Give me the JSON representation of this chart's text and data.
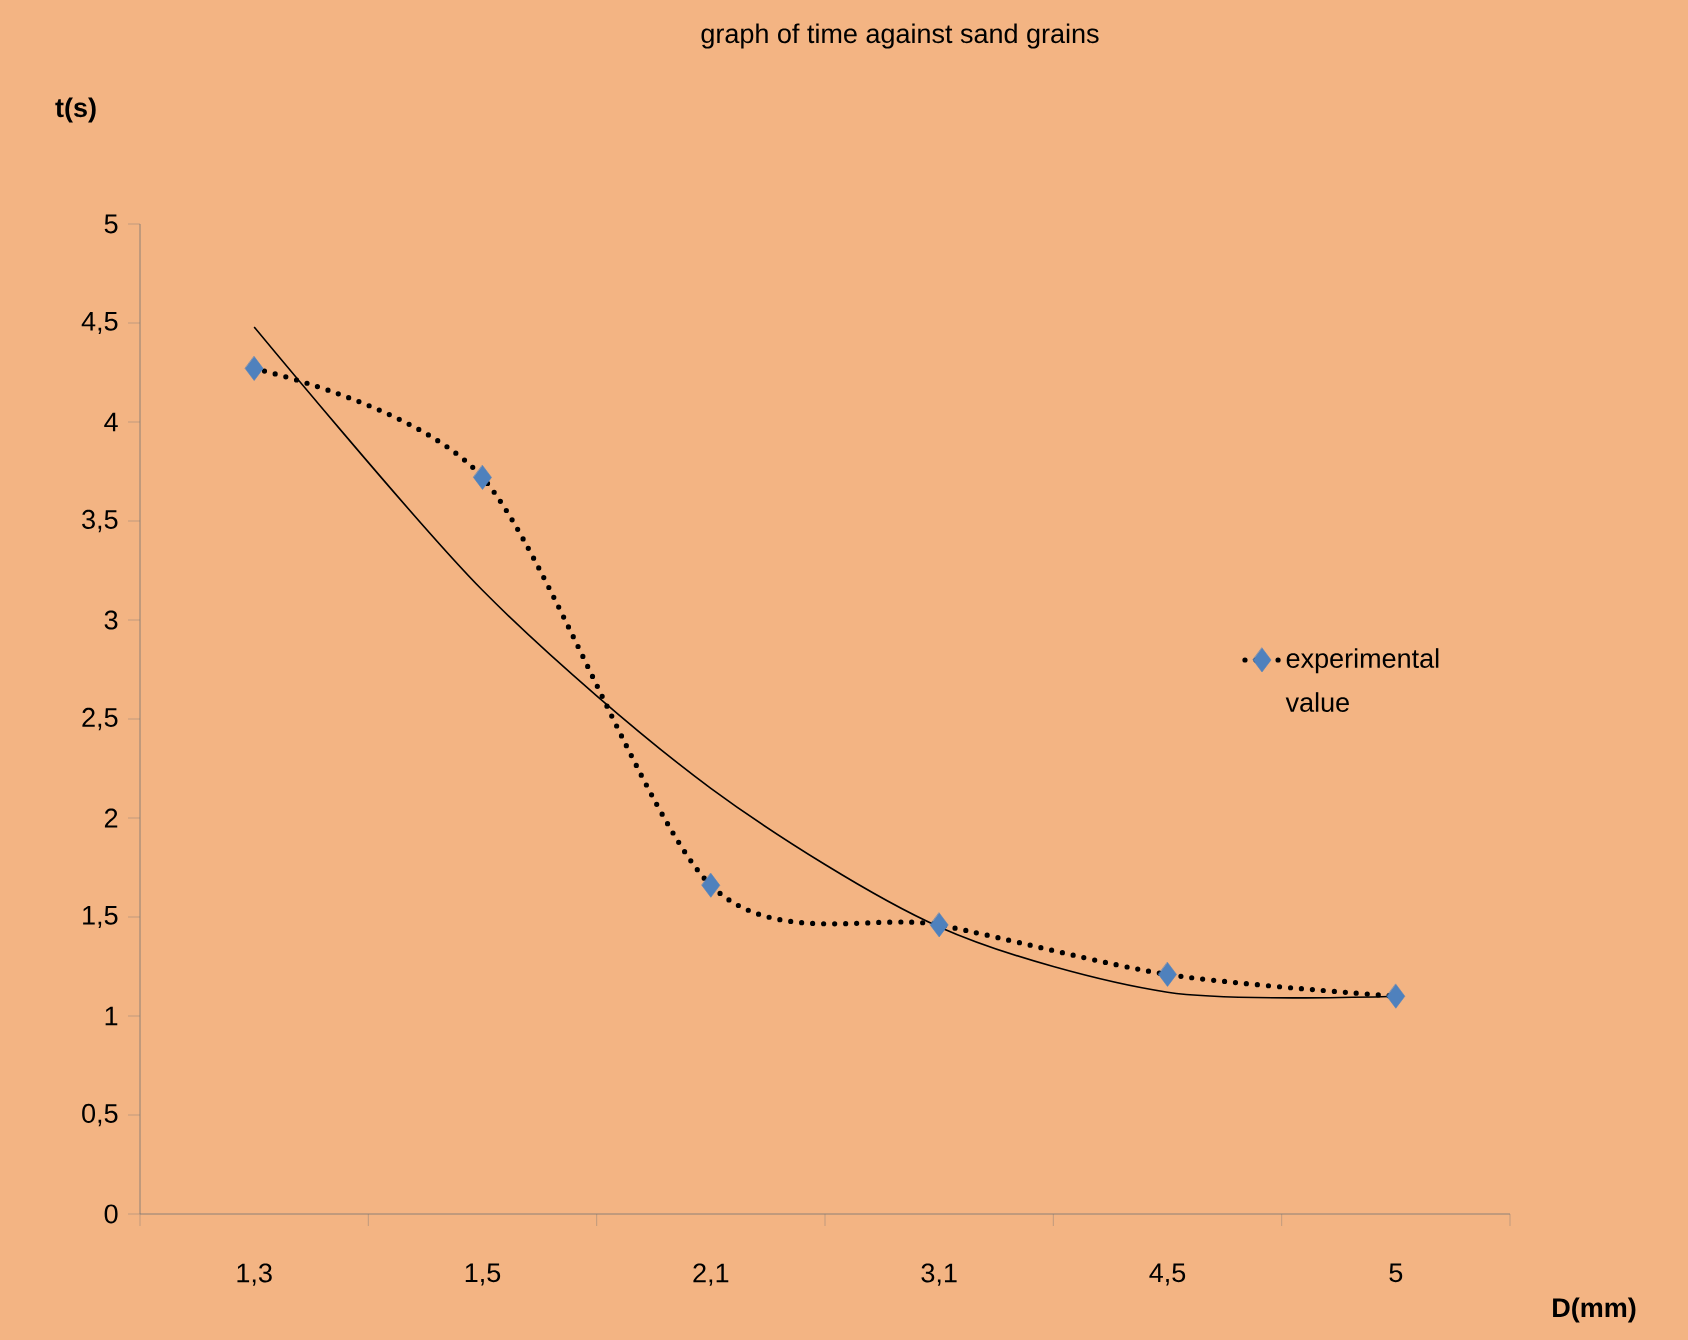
{
  "chart_data": {
    "type": "line",
    "title": "graph of time against sand grains",
    "xlabel": "D(mm)",
    "ylabel": "t(s)",
    "categories": [
      "1,3",
      "1,5",
      "2,1",
      "3,1",
      "4,5",
      "5"
    ],
    "series": [
      {
        "name": "experimental value",
        "color": "#4f81bd",
        "values": [
          4.27,
          3.72,
          1.66,
          1.46,
          1.21,
          1.1
        ],
        "marker": "diamond",
        "line_style": "dotted"
      },
      {
        "type": "line",
        "color": "#000000",
        "values": [
          4.48,
          3.15,
          2.15,
          1.45,
          1.12,
          1.1
        ],
        "marker": "none",
        "line_style": "solid"
      }
    ],
    "ylim": [
      0,
      5
    ],
    "yticks": [
      0,
      {
        "value": 0.5,
        "label": "0,5"
      },
      1,
      {
        "value": 1.5,
        "label": "1,5"
      },
      2,
      {
        "value": 2.5,
        "label": "2,5"
      },
      3,
      {
        "value": 3.5,
        "label": "3,5"
      },
      4,
      {
        "value": 4.5,
        "label": "4,5"
      },
      5
    ],
    "grid": false,
    "legend": "right"
  }
}
